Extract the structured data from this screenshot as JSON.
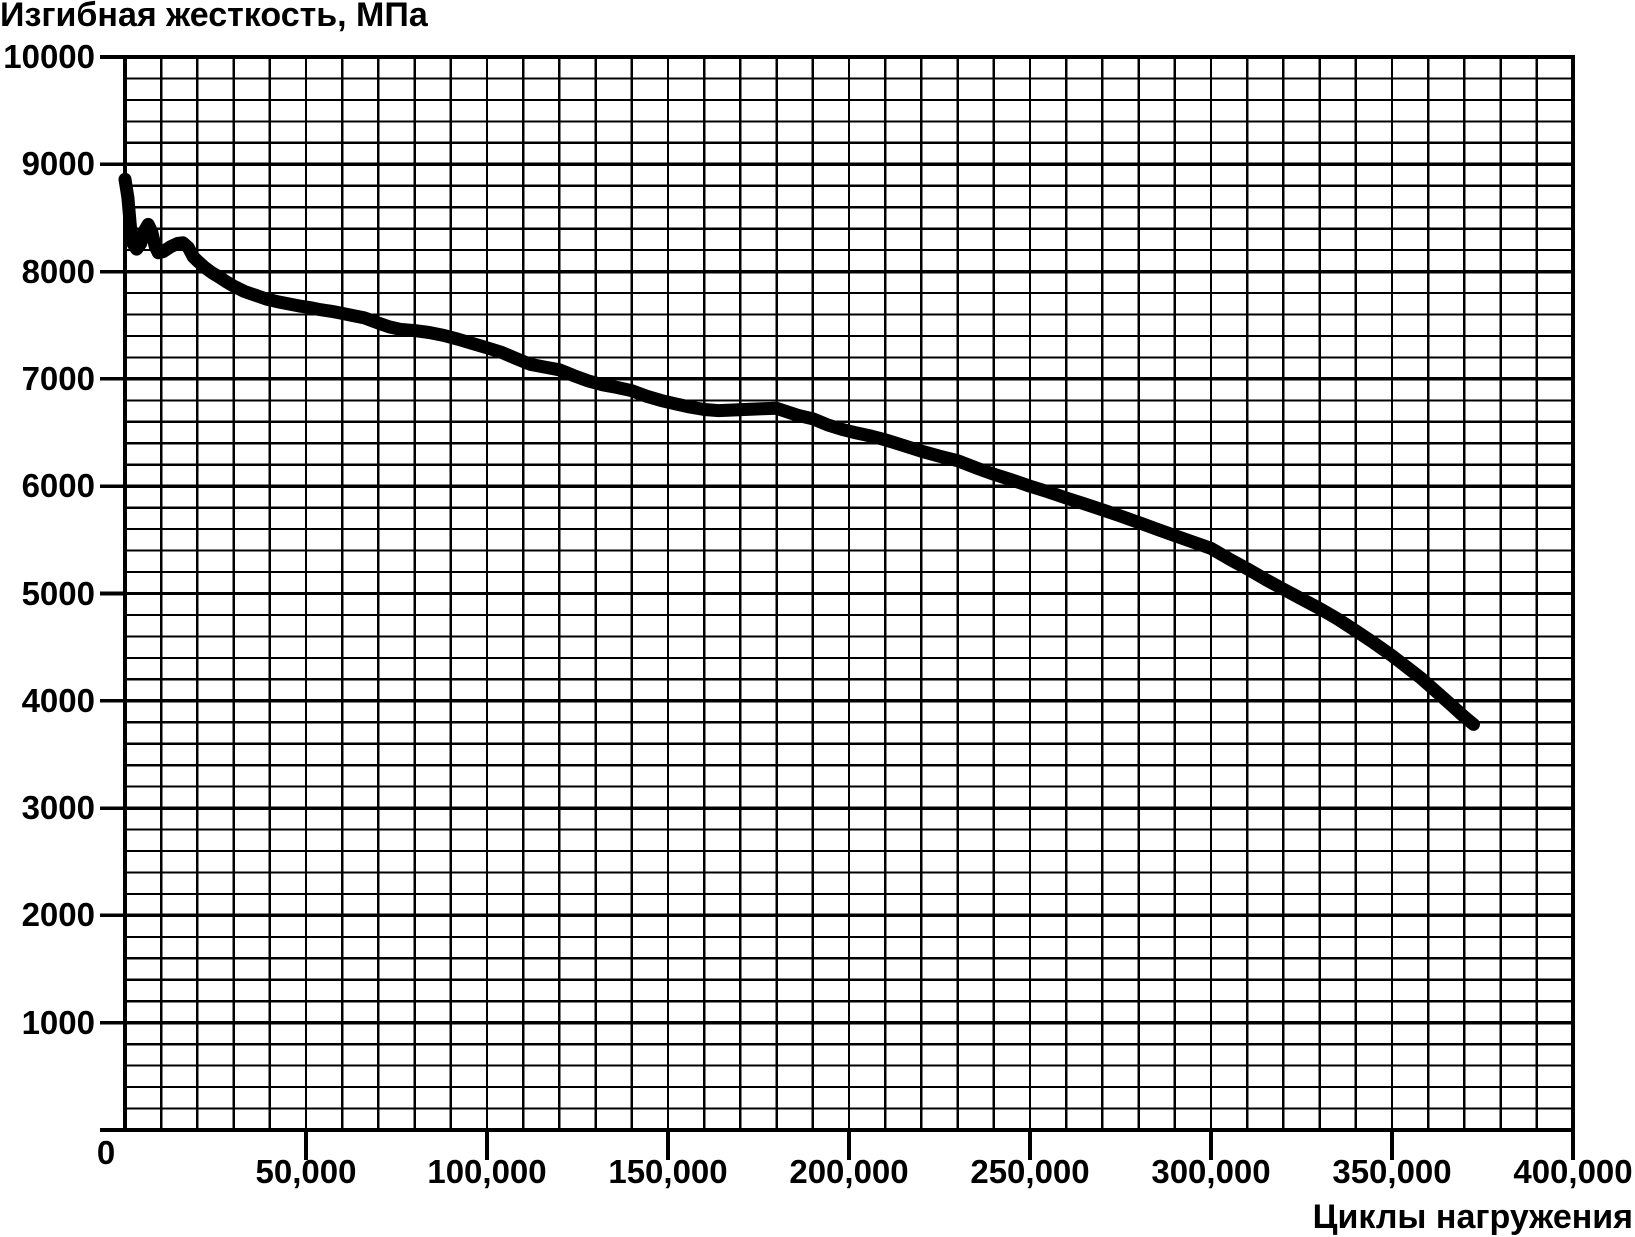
{
  "chart_data": {
    "type": "line",
    "title": "Изгибная жесткость, МПа",
    "ylabel": "Изгибная жесткость, МПа",
    "xlabel": "Циклы нагружения",
    "origin_label": "0",
    "xlim": [
      0,
      400000
    ],
    "ylim": [
      0,
      10000
    ],
    "x_minor_step": 10000,
    "y_minor_step": 200,
    "y_major_step": 1000,
    "x_tick_step": 50000,
    "grid": true,
    "legend": "none",
    "line_color": "#000000",
    "grid_color": "#000000",
    "line_width": 13,
    "x_ticks": [
      {
        "v": 50000,
        "label": "50,000"
      },
      {
        "v": 100000,
        "label": "100,000"
      },
      {
        "v": 150000,
        "label": "150,000"
      },
      {
        "v": 200000,
        "label": "200,000"
      },
      {
        "v": 250000,
        "label": "250,000"
      },
      {
        "v": 300000,
        "label": "300,000"
      },
      {
        "v": 350000,
        "label": "350,000"
      },
      {
        "v": 400000,
        "label": "400,000"
      }
    ],
    "y_ticks": [
      {
        "v": 10000,
        "label": "10000"
      },
      {
        "v": 9000,
        "label": "9000"
      },
      {
        "v": 8000,
        "label": "8000"
      },
      {
        "v": 7000,
        "label": "7000"
      },
      {
        "v": 6000,
        "label": "6000"
      },
      {
        "v": 5000,
        "label": "5000"
      },
      {
        "v": 4000,
        "label": "4000"
      },
      {
        "v": 3000,
        "label": "3000"
      },
      {
        "v": 2000,
        "label": "2000"
      },
      {
        "v": 1000,
        "label": "1000"
      }
    ],
    "series": [
      {
        "name": "Изгибная жесткость",
        "points": [
          [
            0,
            8860
          ],
          [
            800,
            8690
          ],
          [
            1500,
            8420
          ],
          [
            2200,
            8260
          ],
          [
            3200,
            8210
          ],
          [
            4300,
            8260
          ],
          [
            5400,
            8380
          ],
          [
            6400,
            8440
          ],
          [
            7400,
            8370
          ],
          [
            8300,
            8240
          ],
          [
            9200,
            8175
          ],
          [
            10500,
            8185
          ],
          [
            12500,
            8230
          ],
          [
            14500,
            8262
          ],
          [
            16000,
            8268
          ],
          [
            17500,
            8225
          ],
          [
            18800,
            8140
          ],
          [
            20000,
            8100
          ],
          [
            22000,
            8040
          ],
          [
            24000,
            7990
          ],
          [
            26000,
            7950
          ],
          [
            28000,
            7905
          ],
          [
            30000,
            7865
          ],
          [
            33000,
            7815
          ],
          [
            36000,
            7780
          ],
          [
            39000,
            7745
          ],
          [
            42000,
            7720
          ],
          [
            45000,
            7700
          ],
          [
            48000,
            7680
          ],
          [
            51000,
            7665
          ],
          [
            54000,
            7645
          ],
          [
            57000,
            7630
          ],
          [
            60000,
            7610
          ],
          [
            63000,
            7590
          ],
          [
            66000,
            7570
          ],
          [
            68000,
            7545
          ],
          [
            70000,
            7520
          ],
          [
            73000,
            7485
          ],
          [
            76000,
            7462
          ],
          [
            80000,
            7450
          ],
          [
            84000,
            7432
          ],
          [
            88000,
            7405
          ],
          [
            92000,
            7370
          ],
          [
            96000,
            7330
          ],
          [
            100000,
            7290
          ],
          [
            104000,
            7248
          ],
          [
            108000,
            7190
          ],
          [
            112000,
            7135
          ],
          [
            116000,
            7110
          ],
          [
            120000,
            7085
          ],
          [
            124000,
            7030
          ],
          [
            128000,
            6980
          ],
          [
            132000,
            6945
          ],
          [
            136000,
            6920
          ],
          [
            140000,
            6890
          ],
          [
            144000,
            6840
          ],
          [
            148000,
            6800
          ],
          [
            152000,
            6768
          ],
          [
            156000,
            6738
          ],
          [
            160000,
            6715
          ],
          [
            164000,
            6705
          ],
          [
            168000,
            6710
          ],
          [
            172000,
            6716
          ],
          [
            176000,
            6722
          ],
          [
            180000,
            6726
          ],
          [
            183000,
            6692
          ],
          [
            186000,
            6660
          ],
          [
            190000,
            6628
          ],
          [
            194000,
            6572
          ],
          [
            198000,
            6530
          ],
          [
            202000,
            6497
          ],
          [
            206000,
            6468
          ],
          [
            210000,
            6432
          ],
          [
            215000,
            6380
          ],
          [
            220000,
            6326
          ],
          [
            225000,
            6280
          ],
          [
            230000,
            6238
          ],
          [
            235000,
            6172
          ],
          [
            240000,
            6112
          ],
          [
            245000,
            6058
          ],
          [
            250000,
            6000
          ],
          [
            255000,
            5948
          ],
          [
            260000,
            5890
          ],
          [
            265000,
            5836
          ],
          [
            270000,
            5780
          ],
          [
            275000,
            5722
          ],
          [
            280000,
            5662
          ],
          [
            285000,
            5600
          ],
          [
            290000,
            5540
          ],
          [
            295000,
            5480
          ],
          [
            300000,
            5420
          ],
          [
            305000,
            5322
          ],
          [
            310000,
            5230
          ],
          [
            315000,
            5132
          ],
          [
            320000,
            5040
          ],
          [
            325000,
            4950
          ],
          [
            330000,
            4860
          ],
          [
            335000,
            4762
          ],
          [
            340000,
            4652
          ],
          [
            345000,
            4540
          ],
          [
            350000,
            4420
          ],
          [
            355000,
            4290
          ],
          [
            358000,
            4212
          ],
          [
            361000,
            4122
          ],
          [
            364000,
            4032
          ],
          [
            367000,
            3942
          ],
          [
            369000,
            3880
          ],
          [
            371000,
            3822
          ],
          [
            372500,
            3780
          ]
        ]
      }
    ]
  }
}
